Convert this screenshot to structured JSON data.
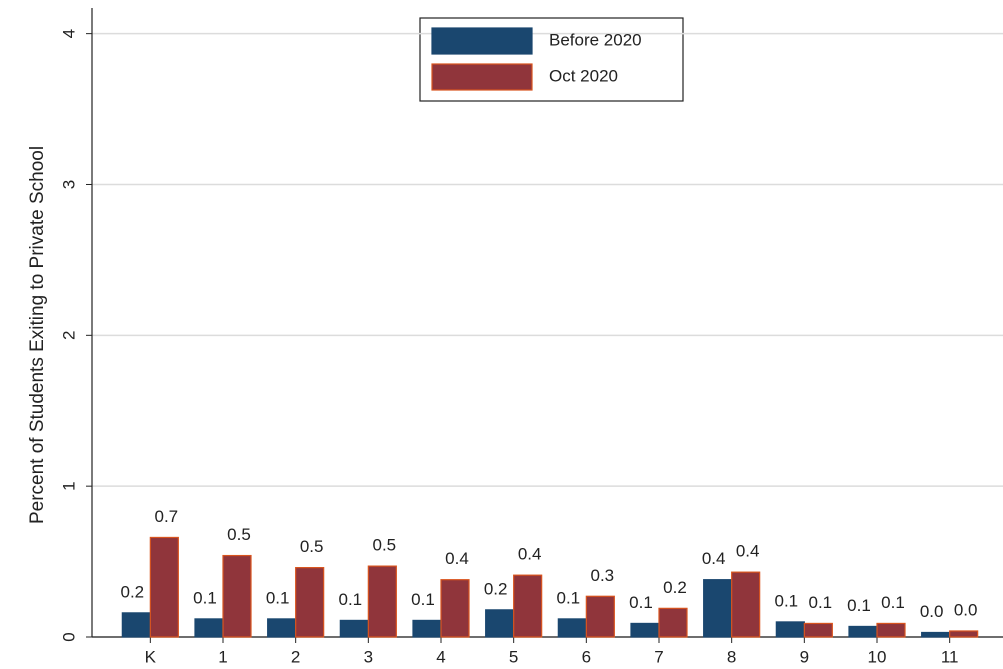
{
  "chart_data": {
    "type": "bar",
    "y_label": "Percent of Students Exiting to Private School",
    "categories": [
      "K",
      "1",
      "2",
      "3",
      "4",
      "5",
      "6",
      "7",
      "8",
      "9",
      "10",
      "11"
    ],
    "series": [
      {
        "name": "Before 2020",
        "color": "#1a476f",
        "edge": "#1a476f",
        "values": [
          0.16,
          0.12,
          0.12,
          0.11,
          0.11,
          0.18,
          0.12,
          0.09,
          0.38,
          0.1,
          0.07,
          0.03
        ],
        "value_labels": [
          "0.2",
          "0.1",
          "0.1",
          "0.1",
          "0.1",
          "0.2",
          "0.1",
          "0.1",
          "0.4",
          "0.1",
          "0.1",
          "0.0"
        ]
      },
      {
        "name": "Oct 2020",
        "color": "#90353b",
        "edge": "#d9541e",
        "values": [
          0.66,
          0.54,
          0.46,
          0.47,
          0.38,
          0.41,
          0.27,
          0.19,
          0.43,
          0.09,
          0.09,
          0.04
        ],
        "value_labels": [
          "0.7",
          "0.5",
          "0.5",
          "0.5",
          "0.4",
          "0.4",
          "0.3",
          "0.2",
          "0.4",
          "0.1",
          "0.1",
          "0.0"
        ]
      }
    ],
    "ylim": [
      0,
      4.17
    ],
    "yticks": [
      0,
      1,
      2,
      3,
      4
    ],
    "grid": true
  }
}
